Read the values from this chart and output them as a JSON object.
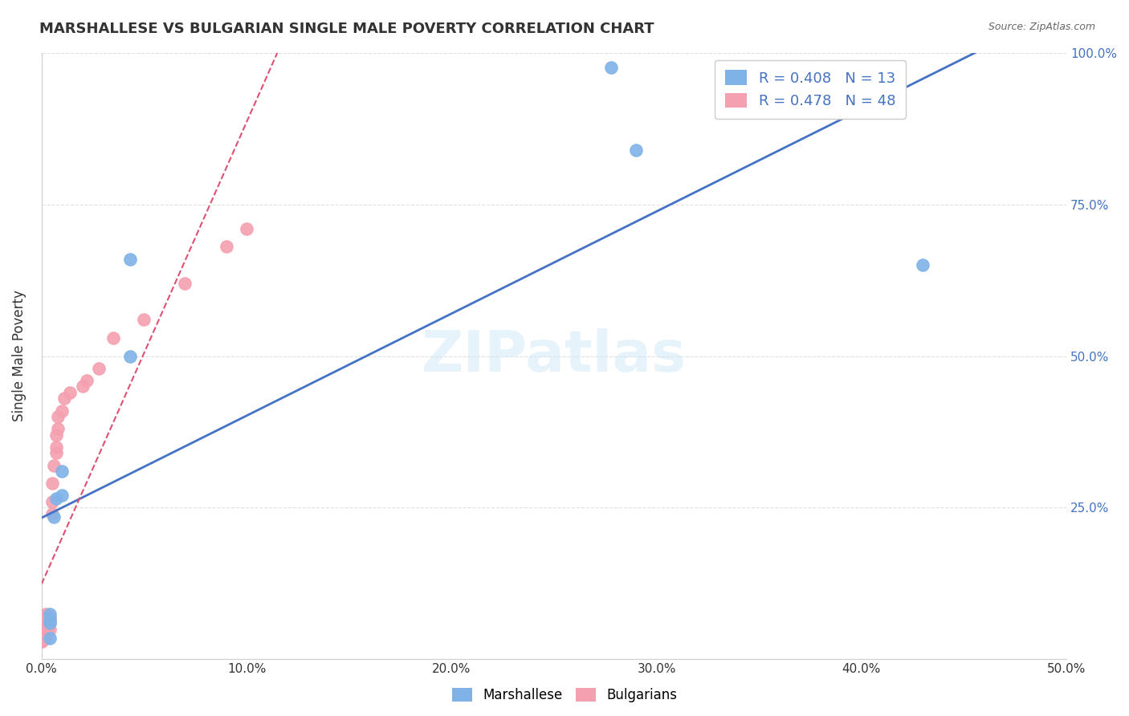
{
  "title": "MARSHALLESE VS BULGARIAN SINGLE MALE POVERTY CORRELATION CHART",
  "source": "Source: ZipAtlas.com",
  "ylabel": "Single Male Poverty",
  "xlabel": "",
  "xlim": [
    0.0,
    0.5
  ],
  "ylim": [
    0.0,
    1.0
  ],
  "xtick_labels": [
    "0.0%",
    "10.0%",
    "20.0%",
    "30.0%",
    "40.0%",
    "50.0%"
  ],
  "xtick_vals": [
    0.0,
    0.1,
    0.2,
    0.3,
    0.4,
    0.5
  ],
  "ytick_labels": [
    "25.0%",
    "50.0%",
    "75.0%",
    "100.0%"
  ],
  "ytick_vals": [
    0.25,
    0.5,
    0.75,
    1.0
  ],
  "legend_labels": [
    "Marshallese",
    "Bulgarians"
  ],
  "marshallese_R": "0.408",
  "marshallese_N": "13",
  "bulgarians_R": "0.478",
  "bulgarians_N": "48",
  "color_marshallese": "#7fb3e8",
  "color_bulgarians": "#f4a0b0",
  "color_trend_marshallese": "#4472c4",
  "color_trend_bulgarians": "#e05070",
  "watermark": "ZIPatlas",
  "marshallese_x": [
    0.004,
    0.004,
    0.004,
    0.004,
    0.006,
    0.007,
    0.01,
    0.01,
    0.043,
    0.043,
    0.278,
    0.29,
    0.43
  ],
  "marshallese_y": [
    0.035,
    0.06,
    0.065,
    0.075,
    0.235,
    0.265,
    0.27,
    0.31,
    0.5,
    0.66,
    0.975,
    0.84,
    0.65
  ],
  "bulgarians_x": [
    0.0,
    0.0,
    0.0,
    0.0,
    0.0,
    0.0,
    0.0,
    0.0,
    0.0,
    0.001,
    0.001,
    0.001,
    0.001,
    0.001,
    0.002,
    0.002,
    0.002,
    0.002,
    0.002,
    0.002,
    0.002,
    0.003,
    0.003,
    0.003,
    0.004,
    0.004,
    0.004,
    0.004,
    0.005,
    0.005,
    0.005,
    0.006,
    0.007,
    0.007,
    0.007,
    0.008,
    0.008,
    0.01,
    0.011,
    0.014,
    0.02,
    0.022,
    0.028,
    0.035,
    0.05,
    0.07,
    0.09,
    0.1
  ],
  "bulgarians_y": [
    0.03,
    0.03,
    0.035,
    0.04,
    0.04,
    0.045,
    0.05,
    0.06,
    0.07,
    0.035,
    0.04,
    0.05,
    0.055,
    0.06,
    0.035,
    0.04,
    0.05,
    0.055,
    0.06,
    0.065,
    0.075,
    0.05,
    0.06,
    0.07,
    0.05,
    0.06,
    0.065,
    0.07,
    0.24,
    0.26,
    0.29,
    0.32,
    0.34,
    0.35,
    0.37,
    0.38,
    0.4,
    0.41,
    0.43,
    0.44,
    0.45,
    0.46,
    0.48,
    0.53,
    0.56,
    0.62,
    0.68,
    0.71
  ],
  "bg_color": "#ffffff",
  "grid_color": "#e0e0e0"
}
